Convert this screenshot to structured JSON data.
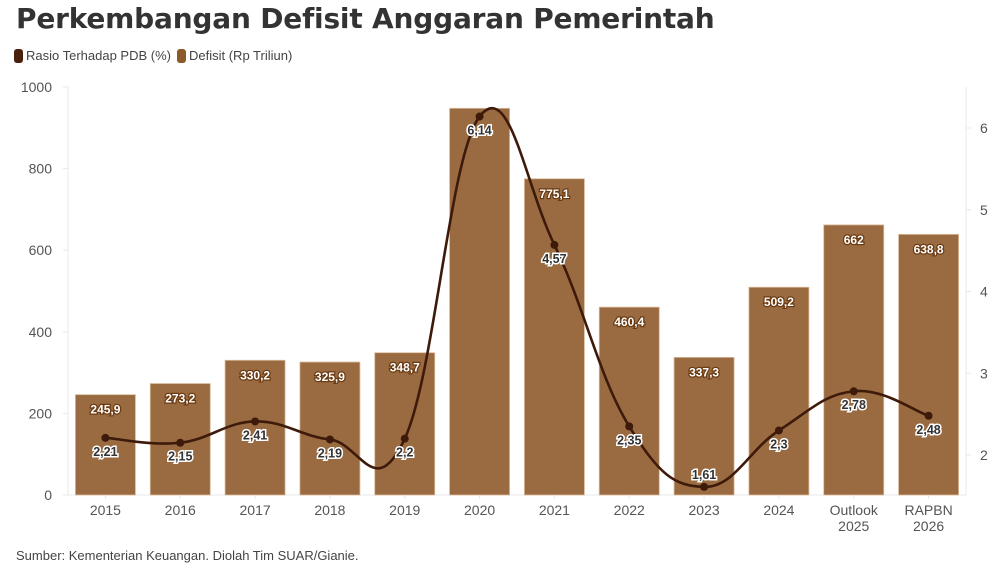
{
  "title": "Perkembangan Defisit Anggaran Pemerintah",
  "legend": [
    {
      "label": "Rasio Terhadap PDB (%)",
      "color": "#4a1f0c"
    },
    {
      "label": "Defisit (Rp Triliun)",
      "color": "#8b5a2b"
    }
  ],
  "source": "Sumber: Kementerian Keuangan. Diolah Tim SUAR/Gianie.",
  "colors": {
    "bar": "#9a6b41",
    "bar_edge": "#d9b99a",
    "line": "#3d1a0a",
    "grid": "#e8e8e8"
  },
  "chart_data": {
    "type": "bar+line",
    "title": "Perkembangan Defisit Anggaran Pemerintah",
    "categories": [
      "2015",
      "2016",
      "2017",
      "2018",
      "2019",
      "2020",
      "2021",
      "2022",
      "2023",
      "2024",
      "Outlook 2025",
      "RAPBN 2026"
    ],
    "series": [
      {
        "name": "Defisit (Rp Triliun)",
        "type": "bar",
        "axis": "left",
        "values": [
          245.9,
          273.2,
          330.2,
          325.9,
          348.7,
          947.7,
          775.1,
          460.4,
          337.3,
          509.2,
          662,
          638.8
        ],
        "labels": [
          "245,9",
          "273,2",
          "330,2",
          "325,9",
          "348,7",
          "",
          "775,1",
          "460,4",
          "337,3",
          "509,2",
          "662",
          "638,8"
        ]
      },
      {
        "name": "Rasio Terhadap PDB (%)",
        "type": "line",
        "axis": "right",
        "values": [
          2.21,
          2.15,
          2.41,
          2.19,
          2.2,
          6.14,
          4.57,
          2.35,
          1.61,
          2.3,
          2.78,
          2.48
        ],
        "labels": [
          "2,21",
          "2,15",
          "2,41",
          "2,19",
          "2,2",
          "6,14",
          "4,57",
          "2,35",
          "1,61",
          "2,3",
          "2,78",
          "2,48"
        ]
      }
    ],
    "left_axis": {
      "ylim": [
        0,
        1000
      ],
      "ticks": [
        0,
        200,
        400,
        600,
        800,
        1000
      ]
    },
    "right_axis": {
      "ticks": [
        2,
        3,
        4,
        5,
        6
      ]
    },
    "xlabel": "",
    "ylabel": "",
    "grid": false,
    "legend_position": "top-left"
  }
}
